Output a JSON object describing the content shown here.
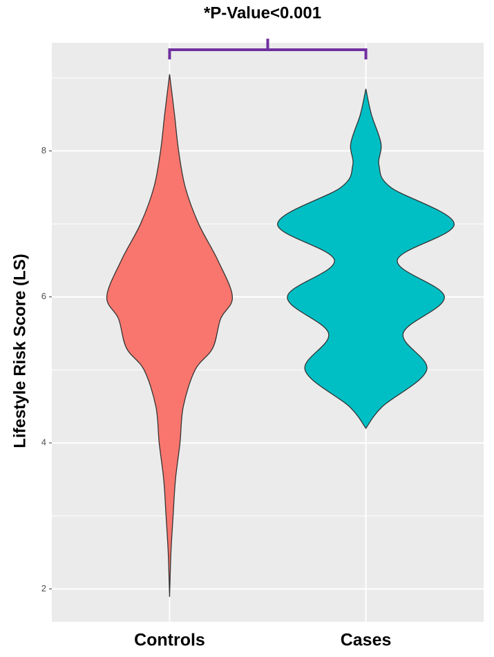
{
  "chart_data": {
    "type": "violin",
    "annotation": "*P-Value<0.001",
    "annotation_color": "#7030a0",
    "y_label": "Lifestyle Risk Score (LS)",
    "categories": [
      "Controls",
      "Cases"
    ],
    "xlim": [
      0.4,
      2.6
    ],
    "ylim": [
      1.55,
      9.48
    ],
    "yticks": [
      2,
      4,
      6,
      8
    ],
    "y_minor_gridlines": [
      3,
      5,
      7,
      9
    ],
    "grid": true,
    "series": [
      {
        "name": "Controls",
        "color": "#f8766d",
        "y": [
          1.89,
          2.5,
          3,
          3.5,
          4,
          4.5,
          5,
          5.3,
          5.7,
          6,
          6.5,
          7,
          7.5,
          8,
          8.5,
          9.05
        ],
        "half_width": [
          0,
          0.007,
          0.018,
          0.03,
          0.053,
          0.07,
          0.13,
          0.22,
          0.26,
          0.32,
          0.246,
          0.148,
          0.08,
          0.046,
          0.025,
          0
        ]
      },
      {
        "name": "Cases",
        "color": "#00bfc4",
        "y": [
          4.2,
          4.5,
          5,
          5.5,
          6,
          6.5,
          7,
          7.5,
          7.8,
          8.1,
          8.5,
          8.85
        ],
        "half_width": [
          0,
          0.085,
          0.31,
          0.19,
          0.4,
          0.16,
          0.45,
          0.127,
          0.067,
          0.077,
          0.028,
          0
        ]
      }
    ]
  }
}
